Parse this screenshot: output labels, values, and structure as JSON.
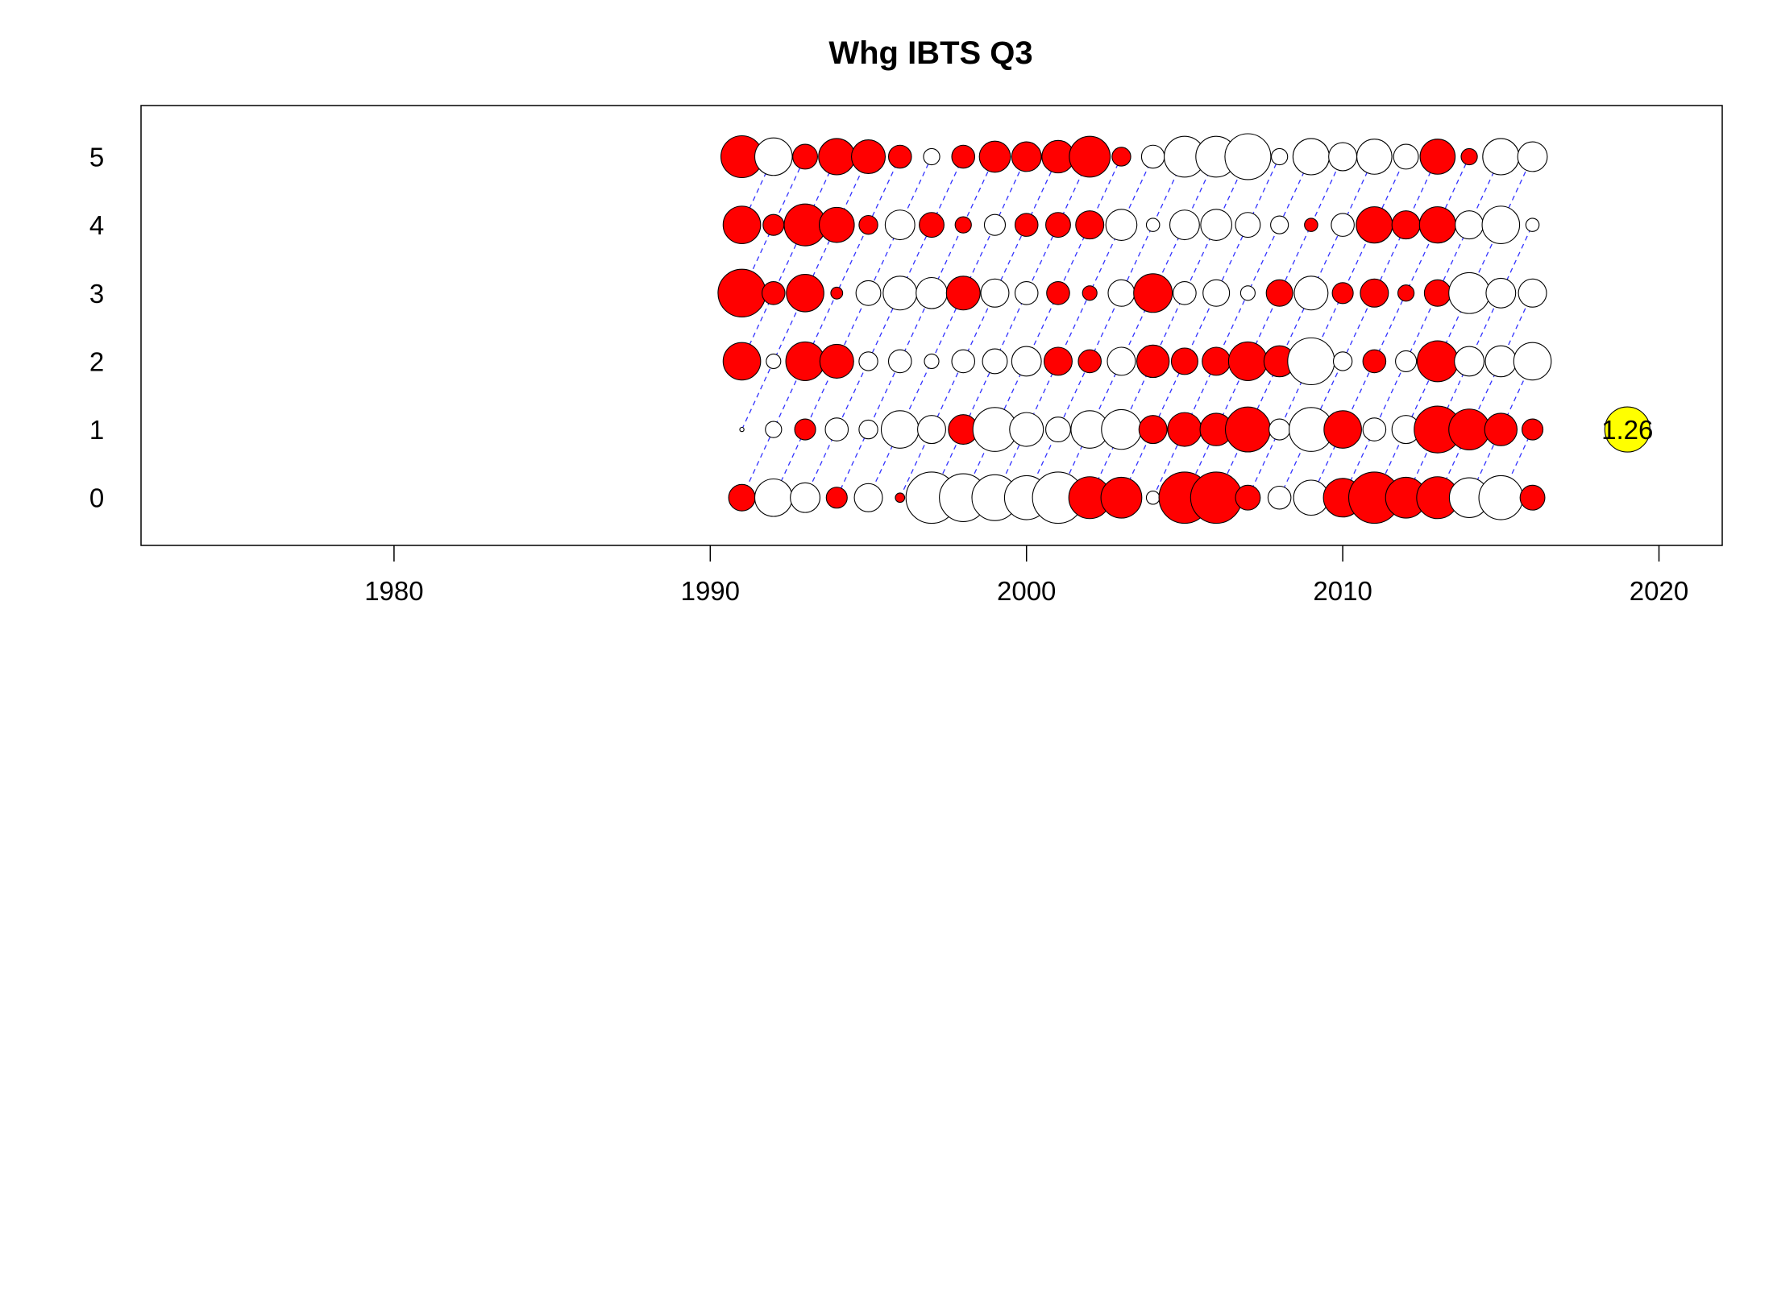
{
  "chart_data": {
    "type": "scatter",
    "title": "Whg IBTS Q3",
    "xlabel": "",
    "ylabel": "",
    "xlim": [
      1972,
      2022
    ],
    "ylim": [
      -0.7,
      5.75
    ],
    "x_ticks": [
      1980,
      1990,
      2000,
      2010,
      2020
    ],
    "y_ticks": [
      0,
      1,
      2,
      3,
      4,
      5
    ],
    "grid": false,
    "legend": "none",
    "colors": {
      "positive": "#ff0000",
      "negative": "#ffffff",
      "highlight": "#ffff00",
      "cohort_line": "#3333ff"
    },
    "years": [
      1991,
      1992,
      1993,
      1994,
      1995,
      1996,
      1997,
      1998,
      1999,
      2000,
      2001,
      2002,
      2003,
      2004,
      2005,
      2006,
      2007,
      2008,
      2009,
      2010,
      2011,
      2012,
      2013,
      2014,
      2015,
      2016
    ],
    "ages": [
      0,
      1,
      2,
      3,
      4,
      5
    ],
    "residuals": [
      [
        0.4,
        -0.01,
        0.8,
        1.3,
        0.8,
        1.0
      ],
      [
        -0.8,
        -0.15,
        -0.12,
        0.3,
        0.25,
        -0.8
      ],
      [
        -0.5,
        0.25,
        0.85,
        0.8,
        1.0,
        0.35
      ],
      [
        0.25,
        -0.3,
        0.65,
        0.08,
        0.7,
        0.75
      ],
      [
        -0.45,
        -0.2,
        -0.2,
        -0.35,
        0.2,
        0.65
      ],
      [
        0.05,
        -0.8,
        -0.3,
        -0.65,
        -0.5,
        0.3
      ],
      [
        -1.5,
        -0.45,
        -0.12,
        -0.55,
        0.35,
        -0.15
      ],
      [
        -1.3,
        0.5,
        -0.3,
        0.65,
        0.15,
        0.3
      ],
      [
        -1.2,
        -1.1,
        -0.35,
        -0.45,
        -0.25,
        0.55
      ],
      [
        -1.1,
        -0.65,
        -0.5,
        -0.3,
        0.3,
        0.5
      ],
      [
        -1.5,
        -0.35,
        0.45,
        0.3,
        0.35,
        0.6
      ],
      [
        1.0,
        -0.8,
        0.3,
        0.12,
        0.45,
        0.95
      ],
      [
        0.95,
        -0.9,
        -0.45,
        -0.4,
        -0.55,
        0.2
      ],
      [
        -0.1,
        0.45,
        0.6,
        0.85,
        -0.1,
        -0.3
      ],
      [
        1.5,
        0.65,
        0.4,
        -0.3,
        -0.5,
        -0.95
      ],
      [
        1.5,
        0.6,
        0.45,
        -0.4,
        -0.55,
        -0.95
      ],
      [
        0.35,
        1.15,
        0.85,
        -0.12,
        -0.35,
        -1.2
      ],
      [
        -0.3,
        -0.25,
        0.55,
        0.4,
        -0.18,
        -0.15
      ],
      [
        -0.7,
        -1.1,
        -1.25,
        -0.65,
        0.1,
        -0.75
      ],
      [
        0.85,
        0.8,
        -0.2,
        0.25,
        -0.3,
        -0.45
      ],
      [
        1.5,
        -0.3,
        0.3,
        0.45,
        0.75,
        -0.7
      ],
      [
        0.95,
        -0.45,
        -0.25,
        0.15,
        0.45,
        -0.35
      ],
      [
        1.0,
        1.25,
        0.95,
        0.4,
        0.75,
        0.7
      ],
      [
        -0.9,
        0.95,
        -0.5,
        -0.95,
        -0.45,
        0.15
      ],
      [
        -1.1,
        0.6,
        -0.55,
        -0.5,
        -0.8,
        -0.75
      ],
      [
        0.35,
        0.25,
        -0.8,
        -0.45,
        -0.1,
        -0.5
      ]
    ],
    "highlight": {
      "year": 2019,
      "age": 1,
      "value": 1.26,
      "label": "1.26"
    }
  }
}
